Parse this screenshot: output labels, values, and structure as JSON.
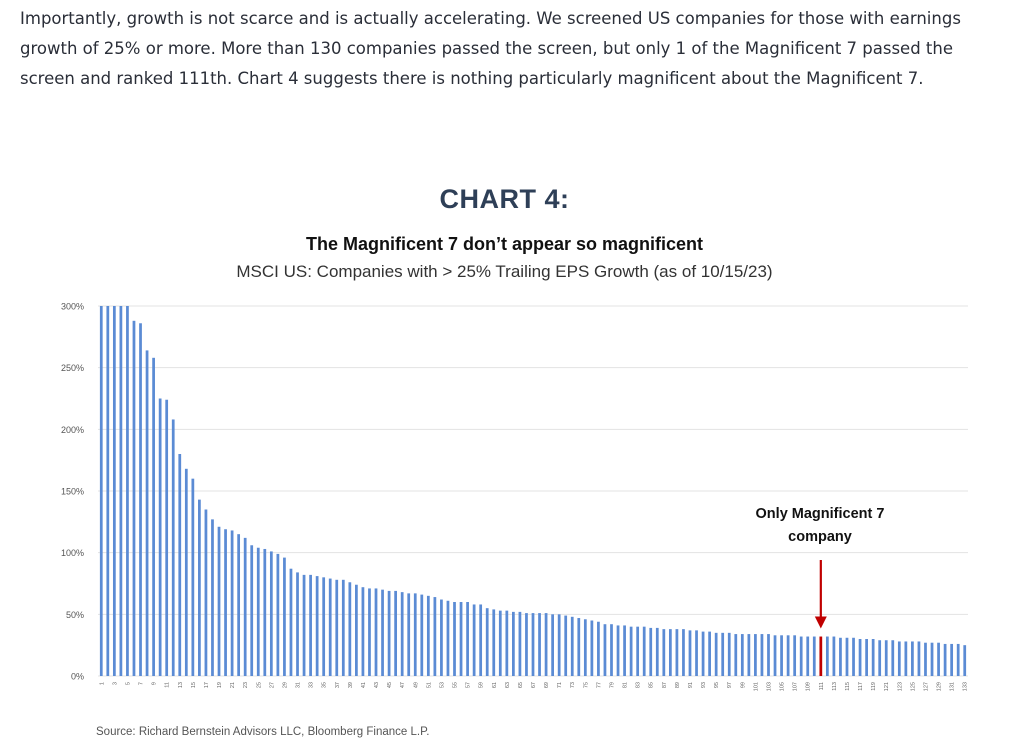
{
  "article": {
    "paragraph": "Importantly, growth is not scarce and is actually accelerating.  We screened US companies for those with earnings growth of 25% or more.  More than 130 companies passed the screen, but only 1 of the Magnificent 7 passed the screen and ranked 111th.  Chart 4 suggests there is nothing particularly magnificent about the Magnificent 7."
  },
  "chart_data": {
    "type": "bar",
    "heading": "CHART 4:",
    "title": "The Magnificent 7 don’t appear so magnificent",
    "subtitle": "MSCI US: Companies with > 25% Trailing EPS Growth (as of 10/15/23)",
    "source": "Source: Richard Bernstein Advisors LLC, Bloomberg Finance L.P.",
    "annotation": "Only Magnificent 7 company",
    "highlight_rank": 111,
    "ylim": [
      0,
      300
    ],
    "y_ticks": [
      "0%",
      "50%",
      "100%",
      "150%",
      "200%",
      "250%",
      "300%"
    ],
    "y_tick_values": [
      0,
      50,
      100,
      150,
      200,
      250,
      300
    ],
    "x_tick_labels": [
      "1",
      "3",
      "5",
      "7",
      "9",
      "11",
      "13",
      "15",
      "17",
      "19",
      "21",
      "23",
      "25",
      "27",
      "29",
      "31",
      "33",
      "35",
      "37",
      "39",
      "41",
      "43",
      "45",
      "47",
      "49",
      "51",
      "53",
      "55",
      "57",
      "59",
      "61",
      "63",
      "65",
      "67",
      "69",
      "71",
      "73",
      "75",
      "77",
      "79",
      "81",
      "83",
      "85",
      "87",
      "89",
      "91",
      "93",
      "95",
      "97",
      "99",
      "101",
      "103",
      "105",
      "107",
      "109",
      "111",
      "113",
      "115",
      "117",
      "119",
      "121",
      "123",
      "125",
      "127",
      "129",
      "131",
      "133"
    ],
    "grid": true,
    "colors": {
      "bar": "#5b8bd4",
      "highlight": "#c00000",
      "arrow": "#c00000"
    },
    "values": [
      300,
      300,
      300,
      300,
      300,
      288,
      286,
      264,
      258,
      225,
      224,
      208,
      180,
      168,
      160,
      143,
      135,
      127,
      121,
      119,
      118,
      115,
      112,
      106,
      104,
      103,
      101,
      99,
      96,
      87,
      84,
      82,
      82,
      81,
      80,
      79,
      78,
      78,
      76,
      74,
      72,
      71,
      71,
      70,
      69,
      69,
      68,
      67,
      67,
      66,
      65,
      64,
      62,
      61,
      60,
      60,
      60,
      58,
      58,
      55,
      54,
      53,
      53,
      52,
      52,
      51,
      51,
      51,
      51,
      50,
      50,
      49,
      48,
      47,
      46,
      45,
      44,
      42,
      42,
      41,
      41,
      40,
      40,
      40,
      39,
      39,
      38,
      38,
      38,
      38,
      37,
      37,
      36,
      36,
      35,
      35,
      35,
      34,
      34,
      34,
      34,
      34,
      34,
      33,
      33,
      33,
      33,
      32,
      32,
      32,
      32,
      32,
      32,
      31,
      31,
      31,
      30,
      30,
      30,
      29,
      29,
      29,
      28,
      28,
      28,
      28,
      27,
      27,
      27,
      26,
      26,
      26,
      25
    ]
  }
}
